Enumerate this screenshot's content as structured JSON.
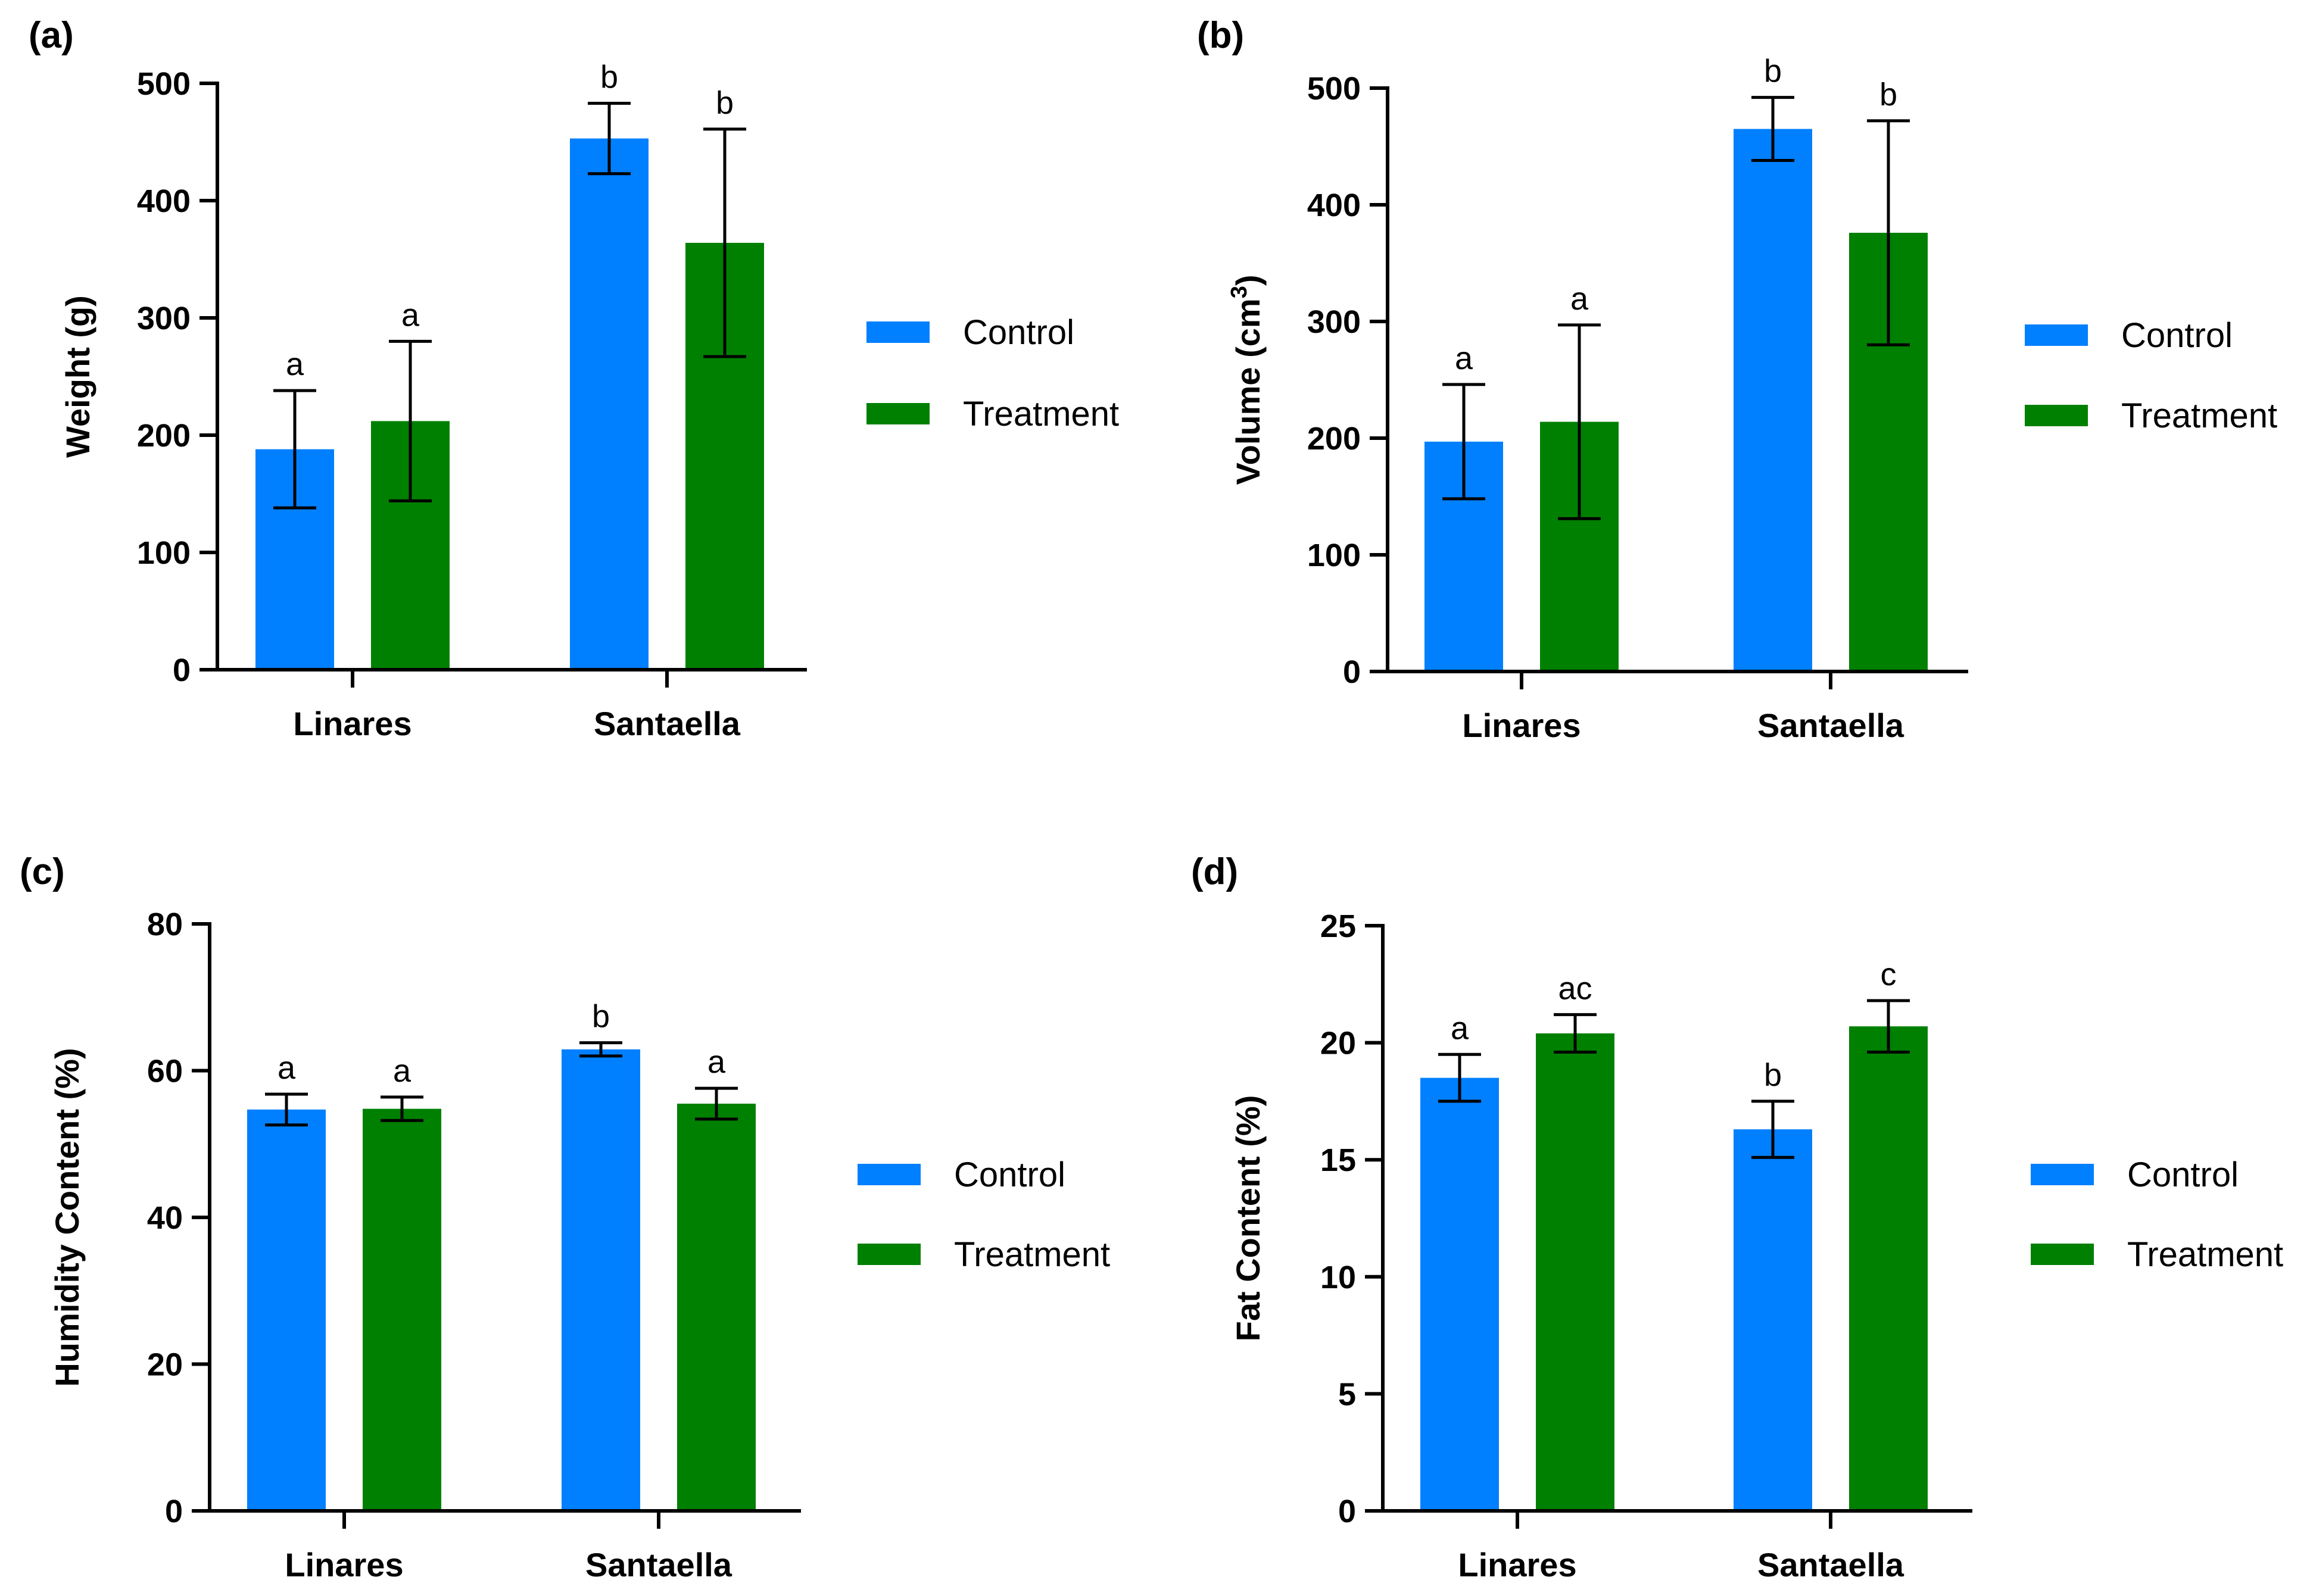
{
  "colors": {
    "control": "#0080FF",
    "treatment": "#008000",
    "axis": "#000000"
  },
  "legend": {
    "items": [
      "Control",
      "Treatment"
    ],
    "placement": "right"
  },
  "chart_data": [
    {
      "panel_label": "(a)",
      "type": "bar",
      "categories": [
        "Linares",
        "Santaella"
      ],
      "ylabel": "Weight (g)",
      "ylabel_sup": "",
      "ylabel_tail": "",
      "ylim": [
        0,
        500
      ],
      "yticks": [
        0,
        100,
        200,
        300,
        400,
        500
      ],
      "series": [
        {
          "name": "Control",
          "values": [
            188,
            453
          ],
          "errors": [
            50,
            30
          ],
          "letters": [
            "a",
            "b"
          ]
        },
        {
          "name": "Treatment",
          "values": [
            212,
            364
          ],
          "errors": [
            68,
            97
          ],
          "letters": [
            "a",
            "b"
          ]
        }
      ]
    },
    {
      "panel_label": "(b)",
      "type": "bar",
      "categories": [
        "Linares",
        "Santaella"
      ],
      "ylabel": "Volume (cm",
      "ylabel_sup": "3",
      "ylabel_tail": ")",
      "ylim": [
        0,
        500
      ],
      "yticks": [
        0,
        100,
        200,
        300,
        400,
        500
      ],
      "series": [
        {
          "name": "Control",
          "values": [
            197,
            465
          ],
          "errors": [
            49,
            27
          ],
          "letters": [
            "a",
            "b"
          ]
        },
        {
          "name": "Treatment",
          "values": [
            214,
            376
          ],
          "errors": [
            83,
            96
          ],
          "letters": [
            "a",
            "b"
          ]
        }
      ]
    },
    {
      "panel_label": "(c)",
      "type": "bar",
      "categories": [
        "Linares",
        "Santaella"
      ],
      "ylabel": "Humidity Content (%)",
      "ylabel_sup": "",
      "ylabel_tail": "",
      "ylim": [
        0,
        80
      ],
      "yticks": [
        0,
        20,
        40,
        60,
        80
      ],
      "series": [
        {
          "name": "Control",
          "values": [
            54.7,
            62.9
          ],
          "errors": [
            2.1,
            0.9
          ],
          "letters": [
            "a",
            "b"
          ]
        },
        {
          "name": "Treatment",
          "values": [
            54.8,
            55.5
          ],
          "errors": [
            1.6,
            2.1
          ],
          "letters": [
            "a",
            "a"
          ]
        }
      ]
    },
    {
      "panel_label": "(d)",
      "type": "bar",
      "categories": [
        "Linares",
        "Santaella"
      ],
      "ylabel": "Fat Content (%)",
      "ylabel_sup": "",
      "ylabel_tail": "",
      "ylim": [
        0,
        25
      ],
      "yticks": [
        0,
        5,
        10,
        15,
        20,
        25
      ],
      "series": [
        {
          "name": "Control",
          "values": [
            18.5,
            16.3
          ],
          "errors": [
            1.0,
            1.2
          ],
          "letters": [
            "a",
            "b"
          ]
        },
        {
          "name": "Treatment",
          "values": [
            20.4,
            20.7
          ],
          "errors": [
            0.8,
            1.1
          ],
          "letters": [
            "ac",
            "c"
          ]
        }
      ]
    }
  ]
}
